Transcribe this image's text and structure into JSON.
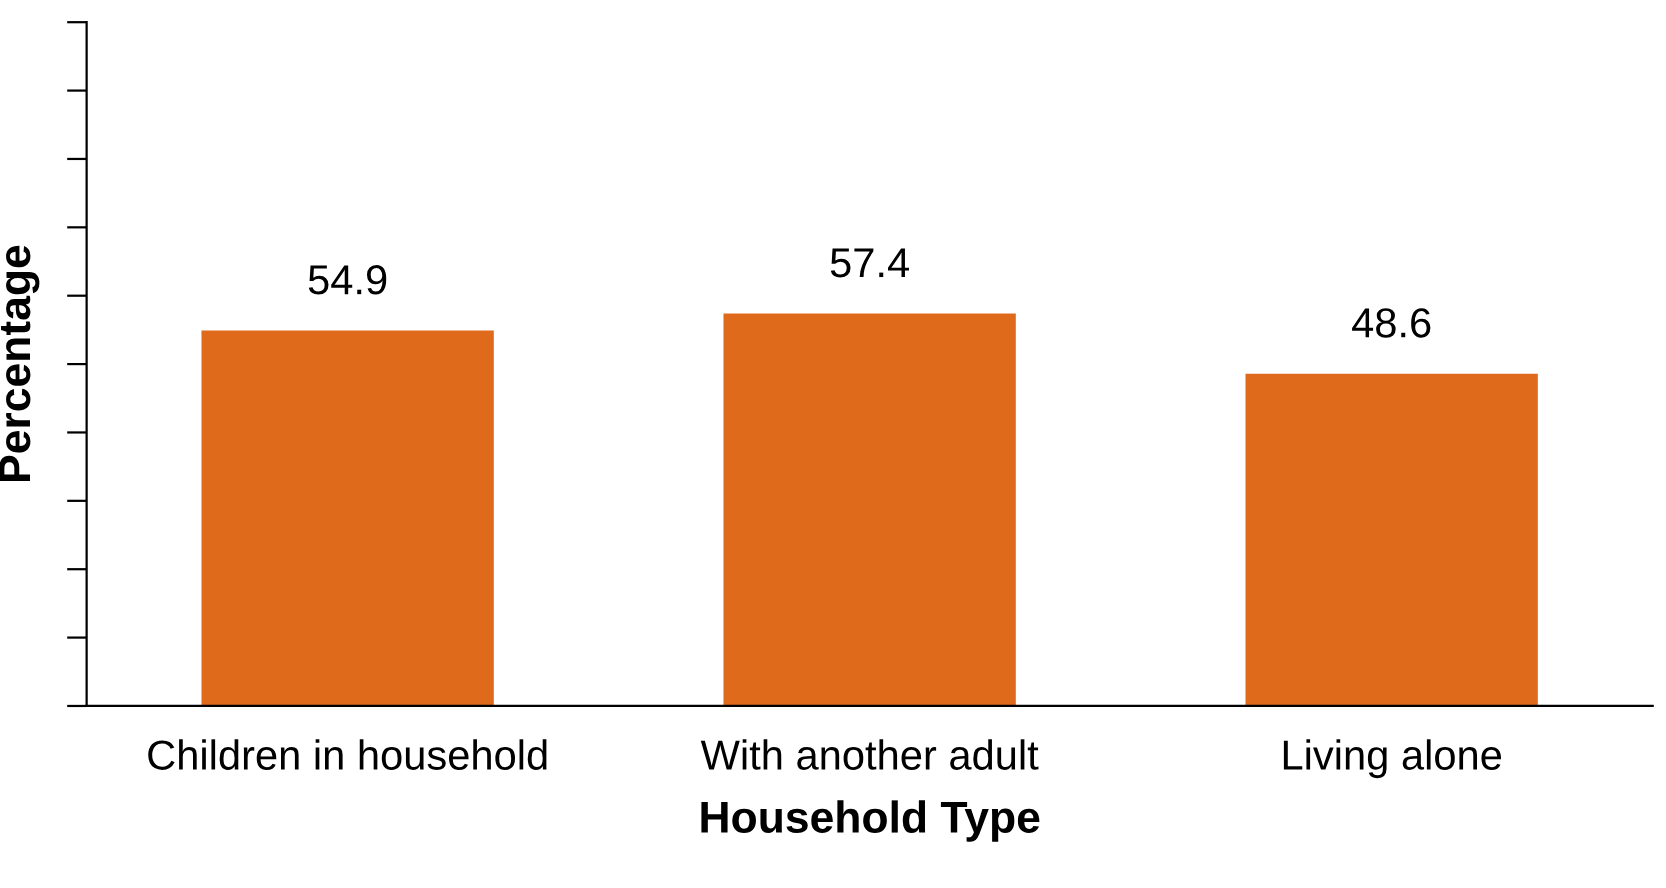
{
  "chart_data": {
    "type": "bar",
    "xlabel": "Household Type",
    "ylabel": "Percentage",
    "categories": [
      "Children in household",
      "With another adult",
      "Living alone"
    ],
    "values": [
      54.9,
      57.4,
      48.6
    ],
    "color": "#e06a1c",
    "data_labels": true,
    "ylim": [
      0,
      100
    ],
    "yticks": [
      {
        "value": 0,
        "label": null
      },
      {
        "value": 10,
        "label": null
      },
      {
        "value": 20,
        "label": null
      },
      {
        "value": 30,
        "label": null
      },
      {
        "value": 40,
        "label": null
      },
      {
        "value": 50,
        "label": null
      },
      {
        "value": 60,
        "label": null
      },
      {
        "value": 70,
        "label": null
      },
      {
        "value": 80,
        "label": null
      },
      {
        "value": 90,
        "label": null
      },
      {
        "value": 100,
        "label": null
      }
    ],
    "tick_labels": "x",
    "grid": false
  }
}
